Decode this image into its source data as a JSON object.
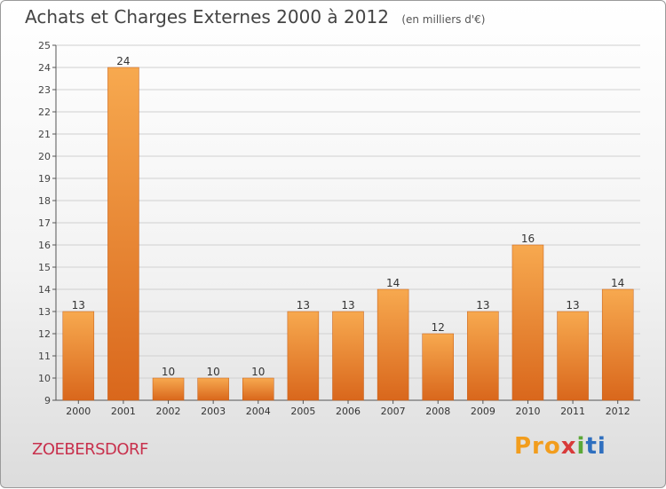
{
  "title": "Achats et Charges Externes 2000 à 2012",
  "subtitle": "(en milliers d'€)",
  "location": "ZOEBERSDORF",
  "logo": {
    "part1": "Pro",
    "part2": "x",
    "part3": "i",
    "part4": "ti"
  },
  "colors": {
    "bar_light": "#f7a94f",
    "bar_dark": "#d9671c",
    "grid": "#d0d0d0",
    "city": "#c8314d"
  },
  "chart_data": {
    "type": "bar",
    "categories": [
      "2000",
      "2001",
      "2002",
      "2003",
      "2004",
      "2005",
      "2006",
      "2007",
      "2008",
      "2009",
      "2010",
      "2011",
      "2012"
    ],
    "values": [
      13,
      24,
      10,
      10,
      10,
      13,
      13,
      14,
      12,
      13,
      16,
      13,
      14
    ],
    "ylim": [
      9,
      25
    ],
    "yticks": [
      9,
      10,
      11,
      12,
      13,
      14,
      15,
      16,
      17,
      18,
      19,
      20,
      21,
      22,
      23,
      24,
      25
    ],
    "grid": true,
    "data_labels": true
  }
}
